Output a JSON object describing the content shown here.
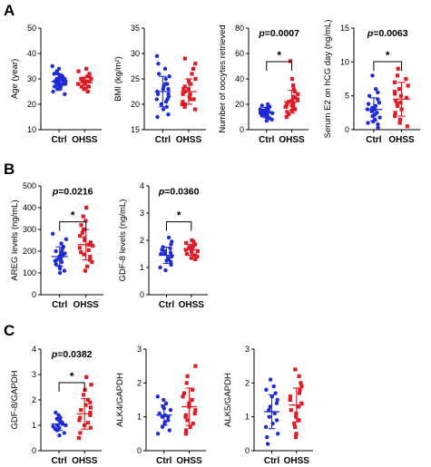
{
  "panels": [
    {
      "letter": "A"
    },
    {
      "letter": "B"
    },
    {
      "letter": "C"
    }
  ],
  "colors": {
    "ctrl": "#1f2bd6",
    "ohss": "#e01b24",
    "axis": "#000000"
  },
  "chart_data": [
    {
      "type": "scatter",
      "panel": "A",
      "ylabel": "Age (year)",
      "categories": [
        "Ctrl",
        "OHSS"
      ],
      "ylim": [
        10,
        50
      ],
      "yticks": [
        10,
        20,
        30,
        40,
        50
      ],
      "series": [
        {
          "name": "Ctrl",
          "marker": "circle",
          "mean": 29,
          "sd": 3,
          "values": [
            24,
            25,
            26,
            26,
            27,
            27,
            27,
            28,
            28,
            28,
            28,
            29,
            29,
            29,
            29,
            30,
            30,
            30,
            30,
            31,
            31,
            31,
            32,
            32,
            33,
            34,
            35
          ]
        },
        {
          "name": "OHSS",
          "marker": "square",
          "mean": 28.5,
          "sd": 2.2,
          "values": [
            25,
            26,
            26,
            27,
            27,
            27,
            28,
            28,
            28,
            28,
            29,
            29,
            29,
            29,
            29,
            30,
            30,
            30,
            31,
            31,
            32,
            33,
            34
          ]
        }
      ]
    },
    {
      "type": "scatter",
      "panel": "A",
      "ylabel": "BMI (kg/m²)",
      "categories": [
        "Ctrl",
        "OHSS"
      ],
      "ylim": [
        15,
        35
      ],
      "yticks": [
        15,
        20,
        25,
        30,
        35
      ],
      "series": [
        {
          "name": "Ctrl",
          "marker": "circle",
          "mean": 22.5,
          "sd": 3,
          "values": [
            17.5,
            18,
            19,
            19.5,
            20,
            20.5,
            21,
            21,
            21.5,
            22,
            22,
            22.5,
            23,
            23,
            23.5,
            24,
            24,
            25,
            25.5,
            26,
            27,
            28,
            29.5
          ]
        },
        {
          "name": "OHSS",
          "marker": "square",
          "mean": 22.5,
          "sd": 2.5,
          "values": [
            19,
            19.5,
            20,
            20,
            20.5,
            21,
            21,
            21.5,
            22,
            22,
            22.5,
            23,
            23,
            23.5,
            24,
            24.5,
            25,
            26,
            27,
            28,
            29
          ]
        }
      ]
    },
    {
      "type": "scatter",
      "panel": "A",
      "ylabel": "Number of oocytes retrieved",
      "categories": [
        "Ctrl",
        "OHSS"
      ],
      "ylim": [
        0,
        80
      ],
      "yticks": [
        0,
        20,
        40,
        60,
        80
      ],
      "pvalue": "p=0.0007",
      "significance": "*",
      "series": [
        {
          "name": "Ctrl",
          "marker": "circle",
          "mean": 13.5,
          "sd": 4,
          "values": [
            7,
            8,
            9,
            10,
            10,
            11,
            11,
            12,
            12,
            12,
            13,
            13,
            13,
            14,
            14,
            14,
            15,
            15,
            16,
            16,
            17,
            18,
            19,
            20
          ]
        },
        {
          "name": "OHSS",
          "marker": "square",
          "mean": 22,
          "sd": 9,
          "values": [
            10,
            12,
            14,
            15,
            16,
            17,
            18,
            18,
            19,
            20,
            20,
            21,
            22,
            23,
            24,
            25,
            26,
            28,
            30,
            32,
            35,
            40,
            54
          ]
        }
      ]
    },
    {
      "type": "scatter",
      "panel": "A",
      "ylabel": "Serum E2 on hCG day (ng/mL)",
      "categories": [
        "Ctrl",
        "OHSS"
      ],
      "ylim": [
        0,
        15
      ],
      "yticks": [
        0,
        5,
        10,
        15
      ],
      "pvalue": "p=0.0063",
      "significance": "*",
      "series": [
        {
          "name": "Ctrl",
          "marker": "circle",
          "mean": 3,
          "sd": 1.7,
          "values": [
            0.3,
            0.8,
            1,
            1.2,
            1.5,
            1.8,
            2,
            2.2,
            2.5,
            2.7,
            3,
            3,
            3.2,
            3.5,
            3.8,
            4,
            4.5,
            5,
            5.5,
            6,
            8
          ]
        },
        {
          "name": "OHSS",
          "marker": "square",
          "mean": 4.5,
          "sd": 2.5,
          "values": [
            0.5,
            1,
            1.5,
            2,
            2.5,
            3,
            3.5,
            3.8,
            4,
            4.3,
            4.7,
            5,
            5.3,
            5.6,
            6,
            6.5,
            7,
            7.5,
            8,
            9
          ]
        }
      ]
    },
    {
      "type": "scatter",
      "panel": "B",
      "ylabel": "AREG levels (ng/mL)",
      "categories": [
        "Ctrl",
        "OHSS"
      ],
      "ylim": [
        0,
        500
      ],
      "yticks": [
        0,
        100,
        200,
        300,
        400,
        500
      ],
      "pvalue": "p=0.0216",
      "significance": "*",
      "series": [
        {
          "name": "Ctrl",
          "marker": "circle",
          "mean": 175,
          "sd": 45,
          "values": [
            100,
            110,
            120,
            130,
            140,
            150,
            155,
            160,
            165,
            170,
            175,
            180,
            185,
            190,
            195,
            200,
            210,
            220,
            235,
            255,
            280
          ]
        },
        {
          "name": "OHSS",
          "marker": "square",
          "mean": 230,
          "sd": 70,
          "values": [
            110,
            130,
            150,
            160,
            175,
            185,
            195,
            205,
            215,
            225,
            230,
            240,
            250,
            260,
            270,
            285,
            300,
            320,
            340,
            360,
            400
          ]
        }
      ]
    },
    {
      "type": "scatter",
      "panel": "B",
      "ylabel": "GDF-8 levels (ng/mL)",
      "categories": [
        "Ctrl",
        "OHSS"
      ],
      "ylim": [
        0,
        4
      ],
      "yticks": [
        0,
        1,
        2,
        3,
        4
      ],
      "pvalue": "p=0.0360",
      "significance": "*",
      "series": [
        {
          "name": "Ctrl",
          "marker": "circle",
          "mean": 1.45,
          "sd": 0.3,
          "values": [
            0.9,
            1,
            1.1,
            1.2,
            1.25,
            1.3,
            1.35,
            1.4,
            1.45,
            1.5,
            1.5,
            1.55,
            1.6,
            1.65,
            1.7,
            1.75,
            1.85,
            1.95,
            2.1
          ]
        },
        {
          "name": "OHSS",
          "marker": "square",
          "mean": 1.65,
          "sd": 0.2,
          "values": [
            1.3,
            1.35,
            1.4,
            1.45,
            1.5,
            1.55,
            1.6,
            1.6,
            1.65,
            1.7,
            1.7,
            1.75,
            1.8,
            1.85,
            1.9,
            1.95,
            2
          ]
        }
      ]
    },
    {
      "type": "scatter",
      "panel": "C",
      "ylabel": "GDF-8/GAPDH",
      "categories": [
        "Ctrl",
        "OHSS"
      ],
      "ylim": [
        0,
        4
      ],
      "yticks": [
        0,
        1,
        2,
        3,
        4
      ],
      "pvalue": "p=0.0382",
      "significance": "*",
      "series": [
        {
          "name": "Ctrl",
          "marker": "circle",
          "mean": 1.05,
          "sd": 0.25,
          "values": [
            0.6,
            0.7,
            0.8,
            0.85,
            0.9,
            0.95,
            1,
            1,
            1.05,
            1.1,
            1.1,
            1.15,
            1.2,
            1.25,
            1.3,
            1.4,
            1.5
          ]
        },
        {
          "name": "OHSS",
          "marker": "square",
          "mean": 1.45,
          "sd": 0.6,
          "values": [
            0.5,
            0.7,
            0.9,
            1,
            1.1,
            1.2,
            1.3,
            1.4,
            1.5,
            1.6,
            1.7,
            1.8,
            1.9,
            2,
            2.2,
            2.4,
            2.6,
            2.9
          ]
        }
      ]
    },
    {
      "type": "scatter",
      "panel": "C",
      "ylabel": "ALK4/GAPDH",
      "categories": [
        "Ctrl",
        "OHSS"
      ],
      "ylim": [
        0,
        3
      ],
      "yticks": [
        0,
        1,
        2,
        3
      ],
      "series": [
        {
          "name": "Ctrl",
          "marker": "circle",
          "mean": 1.05,
          "sd": 0.3,
          "values": [
            0.5,
            0.6,
            0.7,
            0.8,
            0.85,
            0.9,
            1,
            1,
            1.05,
            1.1,
            1.2,
            1.25,
            1.3,
            1.4,
            1.5,
            1.6
          ]
        },
        {
          "name": "OHSS",
          "marker": "square",
          "mean": 1.3,
          "sd": 0.55,
          "values": [
            0.5,
            0.6,
            0.7,
            0.8,
            0.9,
            1,
            1.05,
            1.1,
            1.2,
            1.3,
            1.4,
            1.5,
            1.6,
            1.7,
            1.8,
            2,
            2.2,
            2.5
          ]
        }
      ]
    },
    {
      "type": "scatter",
      "panel": "C",
      "ylabel": "ALK5/GAPDH",
      "categories": [
        "Ctrl",
        "OHSS"
      ],
      "ylim": [
        0,
        3
      ],
      "yticks": [
        0,
        1,
        2,
        3
      ],
      "series": [
        {
          "name": "Ctrl",
          "marker": "circle",
          "mean": 1.15,
          "sd": 0.5,
          "values": [
            0.2,
            0.4,
            0.5,
            0.7,
            0.8,
            0.9,
            1,
            1.1,
            1.2,
            1.3,
            1.4,
            1.5,
            1.6,
            1.7,
            1.8,
            1.9,
            2.1
          ]
        },
        {
          "name": "OHSS",
          "marker": "square",
          "mean": 1.35,
          "sd": 0.5,
          "values": [
            0.4,
            0.5,
            0.7,
            0.8,
            0.9,
            1,
            1.1,
            1.2,
            1.3,
            1.4,
            1.5,
            1.6,
            1.7,
            1.8,
            1.9,
            2,
            2.2,
            2.4
          ]
        }
      ]
    }
  ]
}
